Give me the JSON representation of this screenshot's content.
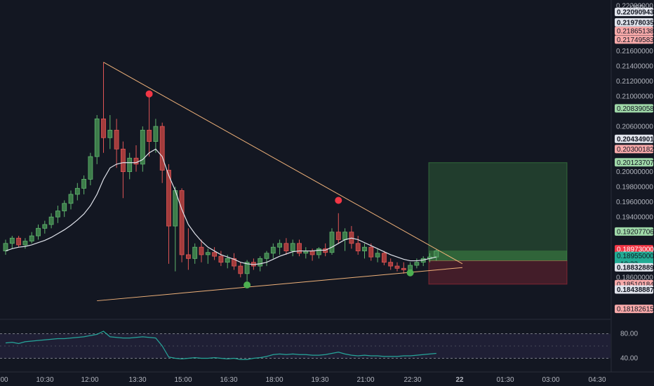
{
  "currency": "USD",
  "price_axis": {
    "min": 0.181,
    "max": 0.222,
    "ticks": [
      {
        "value": 0.222,
        "label": "0.22200000"
      },
      {
        "value": 0.216,
        "label": "0.21600000"
      },
      {
        "value": 0.214,
        "label": "0.21400000"
      },
      {
        "value": 0.212,
        "label": "0.21200000"
      },
      {
        "value": 0.21,
        "label": "0.21000000"
      },
      {
        "value": 0.206,
        "label": "0.20600000"
      },
      {
        "value": 0.2,
        "label": "0.20000000"
      },
      {
        "value": 0.198,
        "label": "0.19800000"
      },
      {
        "value": 0.196,
        "label": "0.19600000"
      },
      {
        "value": 0.194,
        "label": "0.19400000"
      },
      {
        "value": 0.186,
        "label": "0.18600000"
      }
    ],
    "tags": [
      {
        "value": 0.22116,
        "label": "0.22090943",
        "bg": "#e0e3eb",
        "fg": "#131722",
        "bold": true
      },
      {
        "value": 0.21978,
        "label": "0.21978035",
        "bg": "#e0e3eb",
        "fg": "#131722",
        "bold": true
      },
      {
        "value": 0.21865,
        "label": "0.21865138",
        "bg": "#f7a9a9",
        "fg": "#131722",
        "bold": false
      },
      {
        "value": 0.2175,
        "label": "0.21749583",
        "bg": "#f7a9a9",
        "fg": "#131722",
        "bold": false
      },
      {
        "value": 0.20839,
        "label": "0.20839058",
        "bg": "#9fd8a8",
        "fg": "#131722",
        "bold": false
      },
      {
        "value": 0.20435,
        "label": "0.20434901",
        "bg": "#e0e3eb",
        "fg": "#131722",
        "bold": true
      },
      {
        "value": 0.203,
        "label": "0.20300182",
        "bg": "#f7a9a9",
        "fg": "#131722",
        "bold": false
      },
      {
        "value": 0.20124,
        "label": "0.20123707",
        "bg": "#9fd8a8",
        "fg": "#131722",
        "bold": false
      },
      {
        "value": 0.19208,
        "label": "0.19207706",
        "bg": "#9fd8a8",
        "fg": "#131722",
        "bold": false
      },
      {
        "value": 0.18973,
        "label": "0.18973000",
        "bg": "#f23645",
        "fg": "#ffffff",
        "bold": false
      },
      {
        "value": 0.18885,
        "label": "0.18955000",
        "sub": "10:22",
        "bg": "#22ab94",
        "fg": "#131722",
        "bold": false
      },
      {
        "value": 0.18733,
        "label": "0.18832889",
        "bg": "#e0e3eb",
        "fg": "#131722",
        "bold": true
      },
      {
        "value": 0.1851,
        "label": "0.18510184",
        "bg": "#f7a9a9",
        "fg": "#131722",
        "bold": false
      },
      {
        "value": 0.18439,
        "label": "0.18438887",
        "bg": "#e0e3eb",
        "fg": "#131722",
        "bold": true
      },
      {
        "value": 0.18183,
        "label": "0.18182615",
        "bg": "#f7a9a9",
        "fg": "#131722",
        "bold": false
      }
    ]
  },
  "time_axis": [
    {
      "x": 64,
      "label": "10:30"
    },
    {
      "x": 128,
      "label": "12:00"
    },
    {
      "x": 196,
      "label": "13:30"
    },
    {
      "x": 261,
      "label": "15:00"
    },
    {
      "x": 326,
      "label": "16:30"
    },
    {
      "x": 391,
      "label": "18:00"
    },
    {
      "x": 456,
      "label": "19:30"
    },
    {
      "x": 521,
      "label": "21:00"
    },
    {
      "x": 588,
      "label": "22:30"
    },
    {
      "x": 655,
      "label": "22"
    },
    {
      "x": 720,
      "label": "01:30"
    },
    {
      "x": 785,
      "label": "03:00"
    },
    {
      "x": 851,
      "label": "04:30"
    },
    {
      "x": 6,
      "label": "00"
    }
  ],
  "candles": [
    {
      "o": 0.1895,
      "h": 0.191,
      "l": 0.189,
      "c": 0.1905
    },
    {
      "o": 0.1905,
      "h": 0.1915,
      "l": 0.1898,
      "c": 0.1912
    },
    {
      "o": 0.1912,
      "h": 0.1915,
      "l": 0.19,
      "c": 0.1903
    },
    {
      "o": 0.1903,
      "h": 0.1912,
      "l": 0.1898,
      "c": 0.1908
    },
    {
      "o": 0.1908,
      "h": 0.192,
      "l": 0.1905,
      "c": 0.1915
    },
    {
      "o": 0.1915,
      "h": 0.193,
      "l": 0.191,
      "c": 0.1925
    },
    {
      "o": 0.1925,
      "h": 0.1935,
      "l": 0.1918,
      "c": 0.193
    },
    {
      "o": 0.193,
      "h": 0.1945,
      "l": 0.1925,
      "c": 0.194
    },
    {
      "o": 0.194,
      "h": 0.1955,
      "l": 0.1932,
      "c": 0.1948
    },
    {
      "o": 0.1948,
      "h": 0.1962,
      "l": 0.194,
      "c": 0.1958
    },
    {
      "o": 0.1958,
      "h": 0.1975,
      "l": 0.195,
      "c": 0.197
    },
    {
      "o": 0.197,
      "h": 0.1985,
      "l": 0.1962,
      "c": 0.1978
    },
    {
      "o": 0.1978,
      "h": 0.1995,
      "l": 0.197,
      "c": 0.199
    },
    {
      "o": 0.199,
      "h": 0.2025,
      "l": 0.1982,
      "c": 0.202
    },
    {
      "o": 0.202,
      "h": 0.2075,
      "l": 0.201,
      "c": 0.207
    },
    {
      "o": 0.207,
      "h": 0.2145,
      "l": 0.2025,
      "c": 0.2045
    },
    {
      "o": 0.2045,
      "h": 0.2075,
      "l": 0.203,
      "c": 0.2055
    },
    {
      "o": 0.2055,
      "h": 0.207,
      "l": 0.2005,
      "c": 0.203
    },
    {
      "o": 0.203,
      "h": 0.204,
      "l": 0.1965,
      "c": 0.2
    },
    {
      "o": 0.2,
      "h": 0.2025,
      "l": 0.199,
      "c": 0.2018
    },
    {
      "o": 0.2018,
      "h": 0.2035,
      "l": 0.2,
      "c": 0.201
    },
    {
      "o": 0.201,
      "h": 0.206,
      "l": 0.2,
      "c": 0.2055
    },
    {
      "o": 0.2055,
      "h": 0.2105,
      "l": 0.202,
      "c": 0.204
    },
    {
      "o": 0.204,
      "h": 0.207,
      "l": 0.2025,
      "c": 0.206
    },
    {
      "o": 0.206,
      "h": 0.2065,
      "l": 0.1985,
      "c": 0.2002
    },
    {
      "o": 0.2002,
      "h": 0.201,
      "l": 0.1878,
      "c": 0.1928
    },
    {
      "o": 0.1928,
      "h": 0.198,
      "l": 0.1868,
      "c": 0.1975
    },
    {
      "o": 0.1975,
      "h": 0.1978,
      "l": 0.188,
      "c": 0.189
    },
    {
      "o": 0.189,
      "h": 0.1925,
      "l": 0.187,
      "c": 0.1885
    },
    {
      "o": 0.1885,
      "h": 0.1905,
      "l": 0.1878,
      "c": 0.19
    },
    {
      "o": 0.19,
      "h": 0.191,
      "l": 0.188,
      "c": 0.189
    },
    {
      "o": 0.189,
      "h": 0.1898,
      "l": 0.1878,
      "c": 0.1893
    },
    {
      "o": 0.1893,
      "h": 0.19,
      "l": 0.1883,
      "c": 0.1888
    },
    {
      "o": 0.1888,
      "h": 0.1895,
      "l": 0.1875,
      "c": 0.188
    },
    {
      "o": 0.188,
      "h": 0.189,
      "l": 0.1872,
      "c": 0.1885
    },
    {
      "o": 0.1885,
      "h": 0.1892,
      "l": 0.187,
      "c": 0.1875
    },
    {
      "o": 0.1875,
      "h": 0.188,
      "l": 0.186,
      "c": 0.1865
    },
    {
      "o": 0.1865,
      "h": 0.1883,
      "l": 0.1855,
      "c": 0.188
    },
    {
      "o": 0.188,
      "h": 0.1885,
      "l": 0.187,
      "c": 0.1875
    },
    {
      "o": 0.1875,
      "h": 0.1888,
      "l": 0.1868,
      "c": 0.1885
    },
    {
      "o": 0.1885,
      "h": 0.1895,
      "l": 0.1875,
      "c": 0.1892
    },
    {
      "o": 0.1892,
      "h": 0.1905,
      "l": 0.1885,
      "c": 0.19
    },
    {
      "o": 0.19,
      "h": 0.191,
      "l": 0.189,
      "c": 0.1905
    },
    {
      "o": 0.1905,
      "h": 0.1912,
      "l": 0.189,
      "c": 0.1895
    },
    {
      "o": 0.1895,
      "h": 0.191,
      "l": 0.1888,
      "c": 0.1905
    },
    {
      "o": 0.1905,
      "h": 0.191,
      "l": 0.1888,
      "c": 0.1892
    },
    {
      "o": 0.1892,
      "h": 0.19,
      "l": 0.1885,
      "c": 0.1895
    },
    {
      "o": 0.1895,
      "h": 0.1898,
      "l": 0.1882,
      "c": 0.189
    },
    {
      "o": 0.189,
      "h": 0.19,
      "l": 0.1885,
      "c": 0.1898
    },
    {
      "o": 0.1898,
      "h": 0.1905,
      "l": 0.1888,
      "c": 0.1893
    },
    {
      "o": 0.1893,
      "h": 0.1925,
      "l": 0.189,
      "c": 0.192
    },
    {
      "o": 0.192,
      "h": 0.1945,
      "l": 0.1905,
      "c": 0.191
    },
    {
      "o": 0.191,
      "h": 0.1925,
      "l": 0.1895,
      "c": 0.192
    },
    {
      "o": 0.192,
      "h": 0.1928,
      "l": 0.1898,
      "c": 0.1905
    },
    {
      "o": 0.1905,
      "h": 0.1915,
      "l": 0.189,
      "c": 0.1895
    },
    {
      "o": 0.1895,
      "h": 0.1905,
      "l": 0.1885,
      "c": 0.19
    },
    {
      "o": 0.19,
      "h": 0.1905,
      "l": 0.1882,
      "c": 0.1887
    },
    {
      "o": 0.1887,
      "h": 0.1898,
      "l": 0.188,
      "c": 0.1892
    },
    {
      "o": 0.1892,
      "h": 0.1895,
      "l": 0.1876,
      "c": 0.188
    },
    {
      "o": 0.188,
      "h": 0.1885,
      "l": 0.187,
      "c": 0.1875
    },
    {
      "o": 0.1875,
      "h": 0.188,
      "l": 0.1868,
      "c": 0.1872
    },
    {
      "o": 0.1872,
      "h": 0.188,
      "l": 0.1865,
      "c": 0.187
    },
    {
      "o": 0.187,
      "h": 0.188,
      "l": 0.1866,
      "c": 0.1876
    },
    {
      "o": 0.1876,
      "h": 0.1885,
      "l": 0.1872,
      "c": 0.188
    },
    {
      "o": 0.188,
      "h": 0.1888,
      "l": 0.1875,
      "c": 0.1885
    },
    {
      "o": 0.1885,
      "h": 0.1892,
      "l": 0.188,
      "c": 0.1887
    },
    {
      "o": 0.1887,
      "h": 0.1897,
      "l": 0.1882,
      "c": 0.1895
    }
  ],
  "ma": [
    0.1895,
    0.1898,
    0.19,
    0.1901,
    0.1903,
    0.1906,
    0.1909,
    0.1913,
    0.1918,
    0.1923,
    0.1929,
    0.1936,
    0.1944,
    0.1955,
    0.197,
    0.199,
    0.2005,
    0.201,
    0.2012,
    0.2012,
    0.2012,
    0.2016,
    0.2025,
    0.203,
    0.202,
    0.1995,
    0.1975,
    0.195,
    0.193,
    0.1918,
    0.1908,
    0.19,
    0.1895,
    0.189,
    0.1887,
    0.1884,
    0.188,
    0.1878,
    0.1877,
    0.1878,
    0.188,
    0.1884,
    0.1888,
    0.1891,
    0.1894,
    0.1895,
    0.1895,
    0.1895,
    0.1896,
    0.1896,
    0.19,
    0.1905,
    0.191,
    0.1912,
    0.191,
    0.1906,
    0.1902,
    0.1898,
    0.1894,
    0.189,
    0.1887,
    0.1884,
    0.1882,
    0.1882,
    0.1883,
    0.1885,
    0.1887
  ],
  "trendlines": [
    {
      "from": {
        "i": 15,
        "p": 0.2145
      },
      "to": {
        "i": 70,
        "p": 0.1878
      }
    },
    {
      "from": {
        "i": 14,
        "p": 0.1829
      },
      "to": {
        "i": 70,
        "p": 0.1873
      }
    }
  ],
  "markers": [
    {
      "i": 22,
      "p": 0.2103,
      "color": "#f23645"
    },
    {
      "i": 51,
      "p": 0.1962,
      "color": "#f23645"
    },
    {
      "i": 37,
      "p": 0.185,
      "color": "#4caf50"
    },
    {
      "i": 62,
      "p": 0.1866,
      "color": "#4caf50"
    }
  ],
  "position": {
    "x_start": 611,
    "x_end": 808,
    "entry": 0.1882,
    "target": 0.2012,
    "stop": 0.1851,
    "current": 0.18955
  },
  "indicator": {
    "upper_label": "80.00",
    "lower_label": "40.00",
    "upper": 80,
    "lower": 40,
    "min": 20,
    "max": 100,
    "values": [
      65,
      66,
      64,
      67,
      68,
      69,
      70,
      71,
      72,
      72,
      73,
      74,
      75,
      77,
      79,
      84,
      75,
      74,
      73,
      73,
      74,
      75,
      74,
      73,
      60,
      42,
      40,
      39,
      40,
      41,
      40,
      40,
      41,
      40,
      39,
      40,
      38,
      38,
      40,
      41,
      43,
      46,
      47,
      46,
      47,
      46,
      46,
      45,
      45,
      46,
      48,
      50,
      47,
      45,
      44,
      45,
      44,
      44,
      43,
      43,
      43,
      44,
      44,
      45,
      46,
      47,
      48
    ]
  }
}
